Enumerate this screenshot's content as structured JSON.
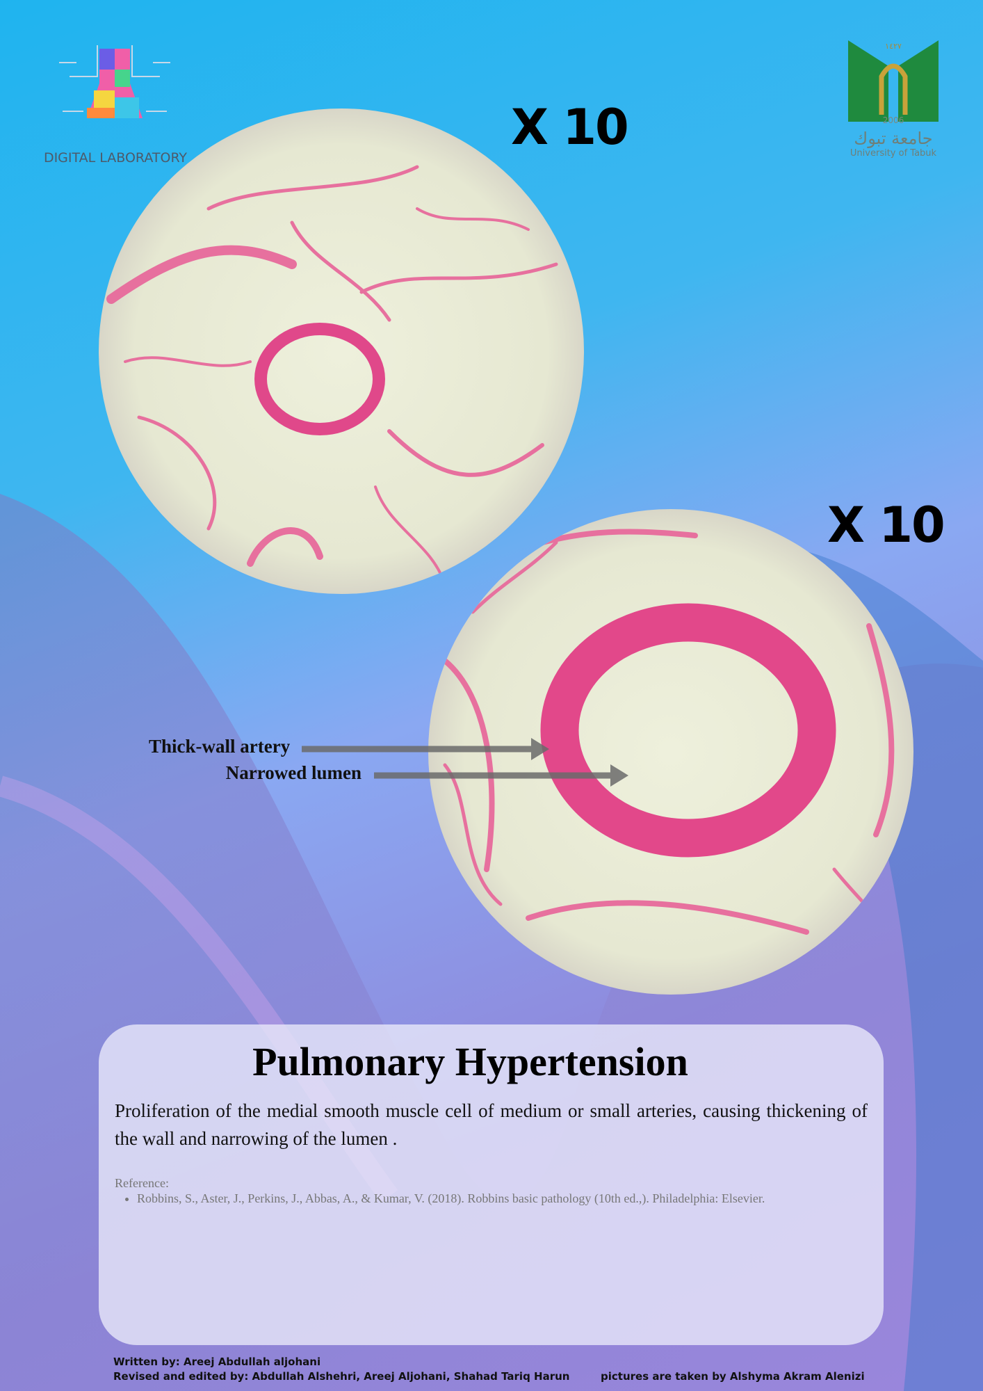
{
  "header": {
    "left_logo": {
      "text": "DIGITAL LABORATORY"
    },
    "right_logo": {
      "hijri_year": "١٤٢٧",
      "year": "2006",
      "name_arabic": "جامعة تبوك",
      "name_english": "University of Tabuk"
    }
  },
  "images": [
    {
      "magnification": "X 10"
    },
    {
      "magnification": "X 10"
    }
  ],
  "annotations": [
    "Thick-wall artery",
    "Narrowed lumen"
  ],
  "card": {
    "title": "Pulmonary Hypertension",
    "description": "Proliferation of the medial smooth muscle cell of medium or small arteries, causing thickening of the wall and narrowing of the lumen .",
    "reference_heading": "Reference:",
    "references": [
      "Robbins, S., Aster, J., Perkins, J., Abbas, A., & Kumar, V. (2018). Robbins basic pathology (10th ed.,). Philadelphia: Elsevier."
    ]
  },
  "footer": {
    "written_by": "Written by:  Areej Abdullah aljohani",
    "revised_by": "Revised and edited by: Abdullah Alshehri, Areej Aljohani, Shahad Tariq Harun",
    "pictures_by": "pictures are taken by  Alshyma Akram Alenizi"
  }
}
